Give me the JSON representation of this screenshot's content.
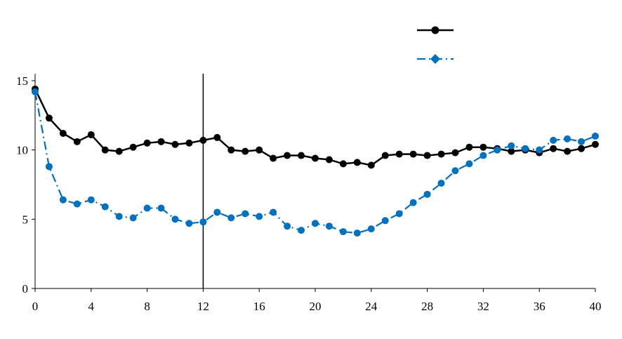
{
  "chart_data": {
    "type": "line",
    "title": "",
    "xlabel": "",
    "ylabel": "",
    "xlim": [
      0,
      40
    ],
    "ylim": [
      0,
      15
    ],
    "x_ticks": [
      0,
      4,
      8,
      12,
      16,
      20,
      24,
      28,
      32,
      36,
      40
    ],
    "y_ticks": [
      0,
      5,
      10,
      15
    ],
    "grid": false,
    "legend": "top-right",
    "vertical_marker_x": 12,
    "x": [
      0,
      1,
      2,
      3,
      4,
      5,
      6,
      7,
      8,
      9,
      10,
      11,
      12,
      13,
      14,
      15,
      16,
      17,
      18,
      19,
      20,
      21,
      22,
      23,
      24,
      25,
      26,
      27,
      28,
      29,
      30,
      31,
      32,
      33,
      34,
      35,
      36,
      37,
      38,
      39,
      40
    ],
    "series": [
      {
        "color": "#000000",
        "line_style": "solid",
        "marker": "circle",
        "values": [
          14.4,
          12.3,
          11.2,
          10.6,
          11.1,
          10.0,
          9.9,
          10.2,
          10.5,
          10.6,
          10.4,
          10.5,
          10.7,
          10.9,
          10.0,
          9.9,
          10.0,
          9.4,
          9.6,
          9.6,
          9.4,
          9.3,
          9.0,
          9.1,
          8.9,
          9.6,
          9.7,
          9.7,
          9.6,
          9.7,
          9.8,
          10.2,
          10.2,
          10.1,
          9.9,
          10.0,
          9.8,
          10.1,
          9.9,
          10.1,
          10.4
        ]
      },
      {
        "color": "#0070C0",
        "line_style": "dash-dot",
        "marker": "circle",
        "values": [
          14.2,
          8.8,
          6.4,
          6.1,
          6.4,
          5.9,
          5.2,
          5.1,
          5.8,
          5.8,
          5.0,
          4.7,
          4.8,
          5.5,
          5.1,
          5.4,
          5.2,
          5.5,
          4.5,
          4.2,
          4.7,
          4.5,
          4.1,
          4.0,
          4.3,
          4.9,
          5.4,
          6.2,
          6.8,
          7.6,
          8.5,
          9.0,
          9.6,
          10.0,
          10.3,
          10.1,
          10.0,
          10.7,
          10.8,
          10.6,
          11.0
        ]
      }
    ]
  }
}
